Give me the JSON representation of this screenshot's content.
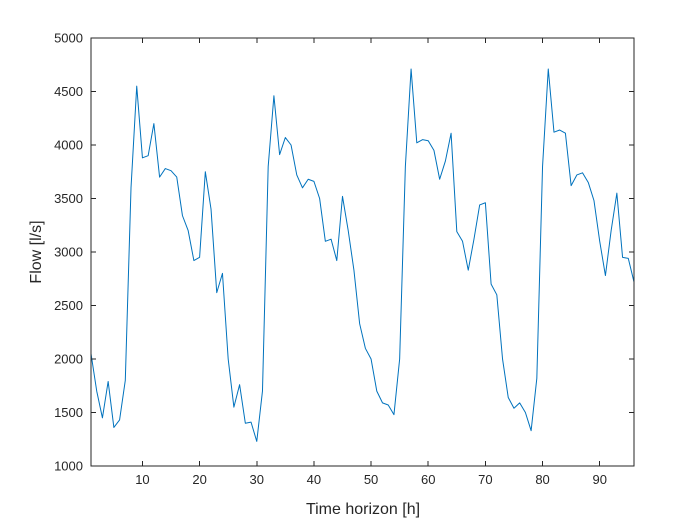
{
  "chart_data": {
    "type": "line",
    "title": "",
    "xlabel": "Time horizon [h]",
    "ylabel": "Flow [l/s]",
    "xlim": [
      1,
      96
    ],
    "ylim": [
      1000,
      5000
    ],
    "xticks": [
      10,
      20,
      30,
      40,
      50,
      60,
      70,
      80,
      90
    ],
    "yticks": [
      1000,
      1500,
      2000,
      2500,
      3000,
      3500,
      4000,
      4500,
      5000
    ],
    "grid": false,
    "legend": "none",
    "line_color": "#0072BD",
    "series": [
      {
        "x": [
          1,
          2,
          3,
          4,
          5,
          6,
          7,
          8,
          9,
          10,
          11,
          12,
          13,
          14,
          15,
          16,
          17,
          18,
          19,
          20,
          21,
          22,
          23,
          24,
          25,
          26,
          27,
          28,
          29,
          30,
          31,
          32,
          33,
          34,
          35,
          36,
          37,
          38,
          39,
          40,
          41,
          42,
          43,
          44,
          45,
          46,
          47,
          48,
          49,
          50,
          51,
          52,
          53,
          54,
          55,
          56,
          57,
          58,
          59,
          60,
          61,
          62,
          63,
          64,
          65,
          66,
          67,
          68,
          69,
          70,
          71,
          72,
          73,
          74,
          75,
          76,
          77,
          78,
          79,
          80,
          81,
          82,
          83,
          84,
          85,
          86,
          87,
          88,
          89,
          90,
          91,
          92,
          93,
          94,
          95,
          96
        ],
        "values": [
          2050,
          1700,
          1450,
          1790,
          1360,
          1430,
          1800,
          3600,
          4550,
          3880,
          3900,
          4200,
          3700,
          3780,
          3760,
          3700,
          3340,
          3200,
          2920,
          2950,
          3750,
          3400,
          2620,
          2800,
          2000,
          1550,
          1760,
          1400,
          1410,
          1230,
          1700,
          3800,
          4460,
          3910,
          4070,
          4000,
          3720,
          3600,
          3680,
          3660,
          3500,
          3100,
          3120,
          2920,
          3520,
          3200,
          2830,
          2330,
          2100,
          2000,
          1700,
          1590,
          1570,
          1480,
          2000,
          3800,
          4710,
          4020,
          4050,
          4040,
          3950,
          3680,
          3850,
          4110,
          3190,
          3100,
          2830,
          3120,
          3440,
          3460,
          2700,
          2600,
          2000,
          1640,
          1540,
          1590,
          1500,
          1330,
          1820,
          3800,
          4710,
          4120,
          4140,
          4110,
          3620,
          3720,
          3740,
          3650,
          3480,
          3100,
          2780,
          3200,
          3550,
          2950,
          2940,
          2720
        ]
      }
    ]
  }
}
